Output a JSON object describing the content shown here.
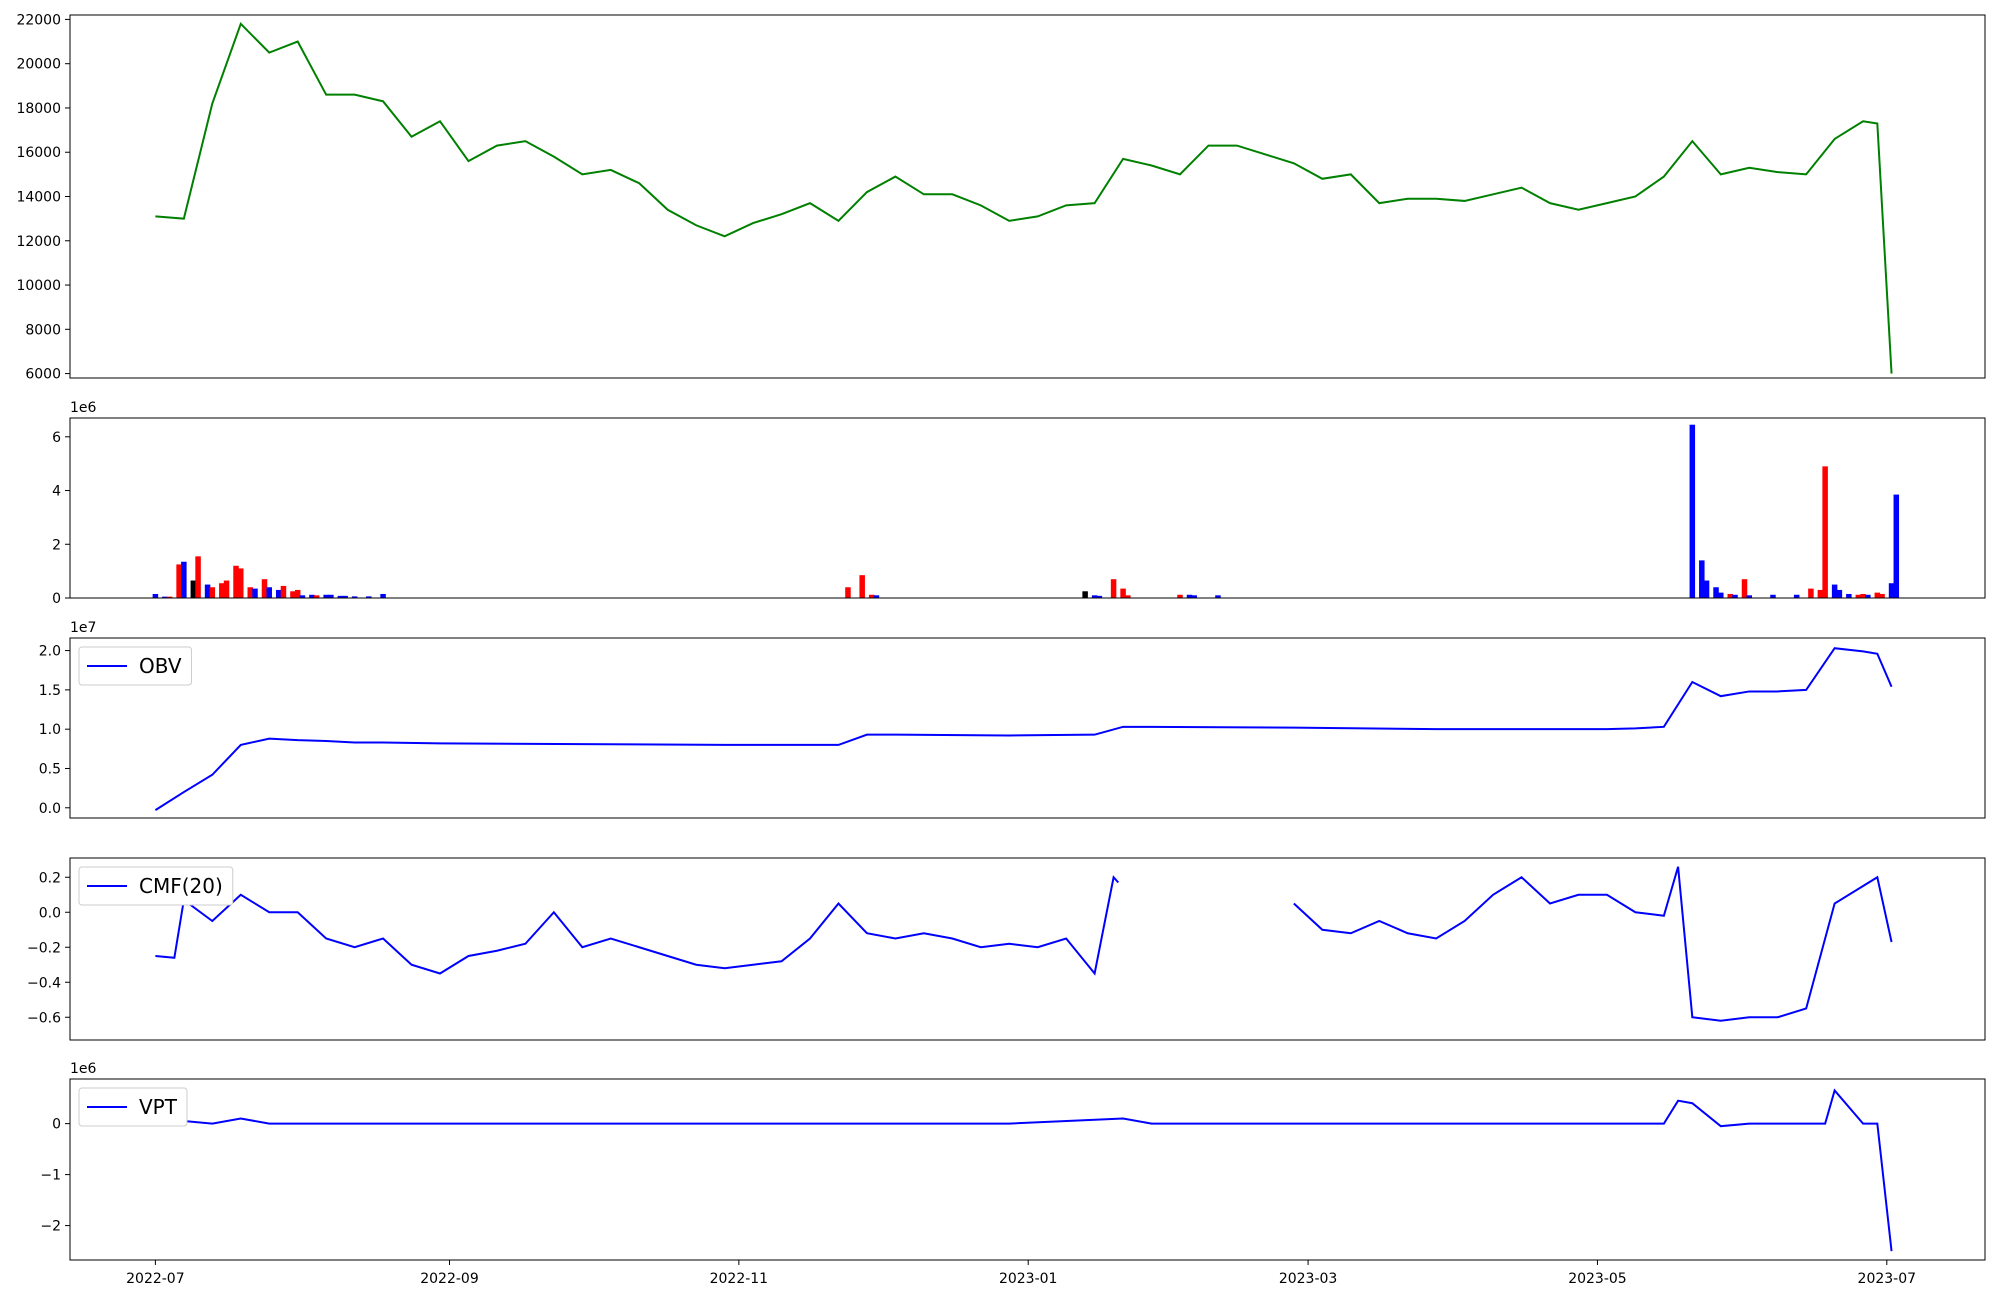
{
  "chart_data": [
    {
      "type": "line",
      "color": "#008000",
      "x": [
        0,
        6,
        12,
        18,
        24,
        30,
        36,
        42,
        48,
        54,
        60,
        66,
        72,
        78,
        84,
        90,
        96,
        102,
        108,
        114,
        120,
        126,
        132,
        138,
        144,
        150,
        156,
        162,
        168,
        174,
        180,
        186,
        192,
        198,
        204,
        210,
        216,
        222,
        228,
        234,
        240,
        246,
        252,
        258,
        264,
        270,
        276,
        282,
        288,
        294,
        300,
        306,
        312,
        318,
        324,
        330,
        336,
        342,
        348,
        354,
        360,
        363,
        366
      ],
      "values": [
        13100,
        13000,
        18200,
        21800,
        20500,
        21000,
        18600,
        18600,
        18300,
        16700,
        17400,
        15600,
        16300,
        16500,
        15800,
        15000,
        15200,
        14600,
        13400,
        12700,
        12200,
        12800,
        13200,
        13700,
        12900,
        14200,
        14900,
        14100,
        14100,
        13600,
        12900,
        13100,
        13600,
        13700,
        15700,
        15400,
        15000,
        16300,
        16300,
        15900,
        15500,
        14800,
        15000,
        13700,
        13900,
        13900,
        13800,
        14100,
        14400,
        13700,
        13400,
        13700,
        14000,
        14900,
        16500,
        15000,
        15300,
        15100,
        15000,
        16600,
        17400,
        17300,
        6000
      ],
      "xlim": [
        -18,
        385.7
      ],
      "ylim": [
        5800,
        22200
      ],
      "yticks": [
        6000,
        8000,
        10000,
        12000,
        14000,
        16000,
        18000,
        20000,
        22000
      ]
    },
    {
      "type": "bar",
      "offset_label": "1e6",
      "x": [
        0,
        2,
        3,
        5,
        6,
        8,
        9,
        11,
        12,
        14,
        15,
        17,
        18,
        20,
        21,
        23,
        24,
        26,
        27,
        29,
        30,
        31,
        33,
        34,
        36,
        37,
        39,
        40,
        42,
        45,
        48,
        146,
        149,
        151,
        152,
        196,
        198,
        199,
        202,
        204,
        205,
        216,
        218,
        219,
        224,
        324,
        326,
        327,
        329,
        330,
        332,
        333,
        335,
        336,
        341,
        346,
        349,
        351,
        352,
        354,
        355,
        357,
        359,
        360,
        361,
        363,
        364,
        366,
        367
      ],
      "values": [
        0.15,
        0.05,
        0.05,
        1.25,
        1.35,
        0.65,
        1.55,
        0.5,
        0.4,
        0.55,
        0.65,
        1.2,
        1.1,
        0.4,
        0.35,
        0.7,
        0.4,
        0.3,
        0.45,
        0.25,
        0.3,
        0.1,
        0.12,
        0.1,
        0.12,
        0.12,
        0.08,
        0.08,
        0.06,
        0.06,
        0.15,
        0.4,
        0.85,
        0.12,
        0.1,
        0.25,
        0.1,
        0.08,
        0.7,
        0.35,
        0.1,
        0.12,
        0.12,
        0.1,
        0.1,
        6.45,
        1.4,
        0.65,
        0.4,
        0.2,
        0.15,
        0.12,
        0.7,
        0.1,
        0.12,
        0.12,
        0.35,
        0.3,
        4.9,
        0.5,
        0.3,
        0.15,
        0.12,
        0.15,
        0.12,
        0.2,
        0.15,
        0.55,
        3.85
      ],
      "colors": [
        "#0000ff",
        "#0000ff",
        "#ff0000",
        "#ff0000",
        "#0000ff",
        "#000000",
        "#ff0000",
        "#0000ff",
        "#ff0000",
        "#ff0000",
        "#ff0000",
        "#ff0000",
        "#ff0000",
        "#ff0000",
        "#0000ff",
        "#ff0000",
        "#0000ff",
        "#0000ff",
        "#ff0000",
        "#ff0000",
        "#ff0000",
        "#0000ff",
        "#0000ff",
        "#ff0000",
        "#0000ff",
        "#0000ff",
        "#0000ff",
        "#0000ff",
        "#0000ff",
        "#0000ff",
        "#0000ff",
        "#ff0000",
        "#ff0000",
        "#ff0000",
        "#0000ff",
        "#000000",
        "#0000ff",
        "#0000ff",
        "#ff0000",
        "#ff0000",
        "#ff0000",
        "#ff0000",
        "#0000ff",
        "#0000ff",
        "#0000ff",
        "#0000ff",
        "#0000ff",
        "#0000ff",
        "#0000ff",
        "#0000ff",
        "#ff0000",
        "#0000ff",
        "#ff0000",
        "#0000ff",
        "#0000ff",
        "#0000ff",
        "#ff0000",
        "#ff0000",
        "#ff0000",
        "#0000ff",
        "#0000ff",
        "#0000ff",
        "#ff0000",
        "#ff0000",
        "#0000ff",
        "#ff0000",
        "#ff0000",
        "#0000ff",
        "#0000ff"
      ],
      "xlim": [
        -18,
        385.7
      ],
      "ylim": [
        0,
        6.7
      ],
      "yticks": [
        0,
        2,
        4,
        6
      ]
    },
    {
      "type": "line",
      "offset_label": "1e7",
      "legend": "upper left",
      "x": [
        0,
        6,
        12,
        18,
        24,
        30,
        36,
        42,
        48,
        60,
        90,
        120,
        144,
        150,
        156,
        180,
        198,
        204,
        210,
        240,
        270,
        300,
        306,
        312,
        318,
        324,
        330,
        336,
        342,
        348,
        354,
        360,
        363,
        366
      ],
      "series": [
        {
          "name": "OBV",
          "color": "#0000ff",
          "values": [
            -0.03,
            0.2,
            0.42,
            0.8,
            0.88,
            0.86,
            0.85,
            0.83,
            0.83,
            0.82,
            0.81,
            0.8,
            0.8,
            0.93,
            0.93,
            0.92,
            0.93,
            1.03,
            1.03,
            1.02,
            1.0,
            1.0,
            1.0,
            1.01,
            1.03,
            1.6,
            1.42,
            1.48,
            1.48,
            1.5,
            2.03,
            1.99,
            1.96,
            1.54
          ]
        }
      ],
      "xlim": [
        -18,
        385.7
      ],
      "ylim": [
        -0.13,
        2.16
      ],
      "yticks": [
        {
          "value": 0,
          "label": "0.0"
        },
        {
          "value": 0.5,
          "label": "0.5"
        },
        {
          "value": 1,
          "label": "1.0"
        },
        {
          "value": 1.5,
          "label": "1.5"
        },
        {
          "value": 2,
          "label": "2.0"
        }
      ]
    },
    {
      "type": "line",
      "legend": "upper left",
      "x": [
        0,
        4,
        6,
        12,
        18,
        24,
        30,
        36,
        42,
        48,
        54,
        60,
        66,
        72,
        78,
        84,
        90,
        96,
        102,
        108,
        114,
        120,
        126,
        132,
        138,
        144,
        150,
        156,
        162,
        168,
        174,
        180,
        186,
        192,
        198,
        202,
        203,
        210,
        234,
        240,
        246,
        252,
        258,
        264,
        270,
        276,
        282,
        288,
        294,
        300,
        306,
        312,
        318,
        321,
        324,
        330,
        336,
        342,
        348,
        354,
        360,
        363,
        366
      ],
      "series": [
        {
          "name": "CMF(20)",
          "color": "#0000ff",
          "values": [
            -0.25,
            -0.26,
            0.07,
            -0.05,
            0.1,
            0.0,
            0.0,
            -0.15,
            -0.2,
            -0.15,
            -0.3,
            -0.35,
            -0.25,
            -0.22,
            -0.18,
            0.0,
            -0.2,
            -0.15,
            -0.2,
            -0.25,
            -0.3,
            -0.32,
            -0.3,
            -0.28,
            -0.15,
            0.05,
            -0.12,
            -0.15,
            -0.12,
            -0.15,
            -0.2,
            -0.18,
            -0.2,
            -0.15,
            -0.35,
            0.2,
            0.17,
            null,
            null,
            0.05,
            -0.1,
            -0.12,
            -0.05,
            -0.12,
            -0.15,
            -0.05,
            0.1,
            0.2,
            0.05,
            0.1,
            0.1,
            0.0,
            -0.02,
            0.26,
            -0.6,
            -0.62,
            -0.6,
            -0.6,
            -0.55,
            0.05,
            0.15,
            0.2,
            -0.17
          ]
        }
      ],
      "xlim": [
        -18,
        385.7
      ],
      "ylim": [
        -0.73,
        0.31
      ],
      "yticks": [
        {
          "value": -0.6,
          "label": "−0.6"
        },
        {
          "value": -0.4,
          "label": "−0.4"
        },
        {
          "value": -0.2,
          "label": "−0.2"
        },
        {
          "value": 0,
          "label": "0.0"
        },
        {
          "value": 0.2,
          "label": "0.2"
        }
      ]
    },
    {
      "type": "line",
      "offset_label": "1e6",
      "legend": "upper left",
      "x": [
        0,
        6,
        12,
        18,
        24,
        30,
        60,
        120,
        180,
        204,
        210,
        300,
        318,
        321,
        324,
        330,
        336,
        348,
        352,
        354,
        360,
        363,
        366
      ],
      "series": [
        {
          "name": "VPT",
          "color": "#0000ff",
          "values": [
            0.0,
            0.05,
            0.0,
            0.1,
            0.0,
            0.0,
            0.0,
            0.0,
            0.0,
            0.1,
            0.0,
            0.0,
            0.0,
            0.45,
            0.4,
            -0.05,
            0.0,
            0.0,
            0.0,
            0.65,
            0.0,
            0.0,
            -2.5
          ]
        }
      ],
      "xlim": [
        -18,
        385.7
      ],
      "ylim": [
        -2.675,
        0.875
      ],
      "yticks": [
        {
          "value": -2,
          "label": "−2"
        },
        {
          "value": -1,
          "label": "−1"
        },
        {
          "value": 0,
          "label": "0"
        }
      ],
      "xticks": [
        {
          "value": 0,
          "label": "2022-07"
        },
        {
          "value": 62,
          "label": "2022-09"
        },
        {
          "value": 123,
          "label": "2022-11"
        },
        {
          "value": 184,
          "label": "2023-01"
        },
        {
          "value": 243,
          "label": "2023-03"
        },
        {
          "value": 304,
          "label": "2023-05"
        },
        {
          "value": 365,
          "label": "2023-07"
        }
      ]
    }
  ]
}
